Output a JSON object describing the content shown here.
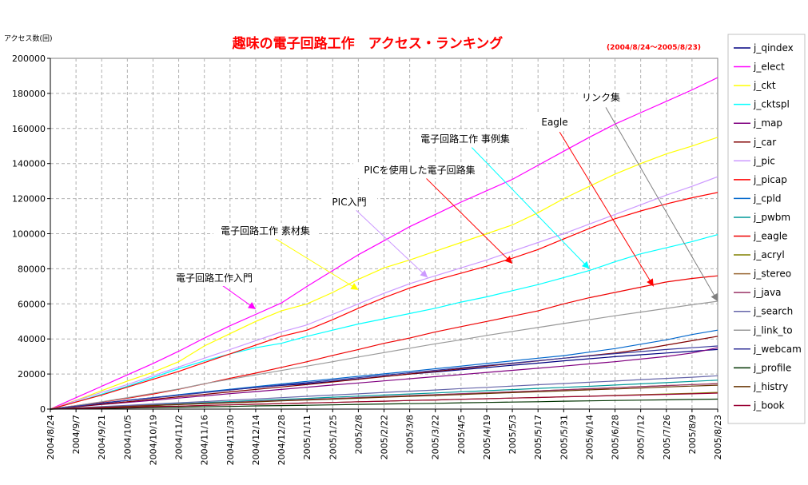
{
  "chart_data": {
    "type": "line",
    "title": "趣味の電子回路工作　アクセス・ランキング",
    "subtitle": "(2004/8/24～2005/8/23)",
    "ylabel": "アクセス数(回)",
    "xlabel": "",
    "ylim": [
      0,
      200000
    ],
    "y_ticks": [
      "0",
      "20000",
      "40000",
      "60000",
      "80000",
      "100000",
      "120000",
      "140000",
      "160000",
      "180000",
      "200000"
    ],
    "x_ticks": [
      "2004/8/24",
      "2004/9/7",
      "2004/9/21",
      "2004/10/5",
      "2004/10/19",
      "2004/11/2",
      "2004/11/16",
      "2004/11/30",
      "2004/12/14",
      "2004/12/28",
      "2005/1/11",
      "2005/1/25",
      "2005/2/8",
      "2005/2/22",
      "2005/3/8",
      "2005/3/22",
      "2005/4/5",
      "2005/4/19",
      "2005/5/3",
      "2005/5/17",
      "2005/5/31",
      "2005/6/14",
      "2005/6/28",
      "2005/7/12",
      "2005/7/26",
      "2005/8/9",
      "2005/8/23"
    ],
    "grid": true,
    "legend_position": "right",
    "series": [
      {
        "name": "j_qindex",
        "color": "#000080",
        "values": [
          0,
          1800,
          3500,
          5000,
          6500,
          8000,
          9500,
          11000,
          12300,
          13500,
          14500,
          15800,
          17200,
          18600,
          20000,
          21200,
          22400,
          23700,
          25000,
          26200,
          27500,
          28700,
          29900,
          31000,
          32000,
          33000,
          34000
        ]
      },
      {
        "name": "j_elect",
        "color": "#ff00ff",
        "values": [
          0,
          6500,
          13000,
          19500,
          26000,
          33000,
          40500,
          47500,
          54000,
          60500,
          70000,
          79000,
          88000,
          96000,
          104000,
          111000,
          118000,
          124500,
          131000,
          139000,
          147000,
          155000,
          162500,
          169000,
          175500,
          182000,
          189000
        ]
      },
      {
        "name": "j_ckt",
        "color": "#ffff00",
        "values": [
          0,
          5000,
          10500,
          16000,
          21000,
          27000,
          36000,
          43000,
          50000,
          56000,
          60000,
          66500,
          74000,
          80500,
          85000,
          90000,
          95000,
          100000,
          105000,
          112000,
          120000,
          127000,
          134000,
          140000,
          145500,
          150000,
          155000
        ]
      },
      {
        "name": "j_cktspl",
        "color": "#00ffff",
        "values": [
          0,
          4000,
          8500,
          13000,
          18000,
          23000,
          27500,
          31500,
          35000,
          37500,
          41500,
          45000,
          48500,
          51500,
          54500,
          57500,
          61000,
          64000,
          67500,
          71000,
          75000,
          79000,
          84000,
          88500,
          92000,
          95500,
          99500
        ]
      },
      {
        "name": "j_map",
        "color": "#800080",
        "values": [
          0,
          1300,
          2600,
          3800,
          5000,
          6300,
          7500,
          8800,
          10000,
          11200,
          12500,
          13700,
          14900,
          16100,
          17300,
          18500,
          19700,
          20900,
          22100,
          23300,
          24500,
          25800,
          27000,
          28500,
          30000,
          32000,
          35000
        ]
      },
      {
        "name": "j_car",
        "color": "#800000",
        "values": [
          0,
          1400,
          2800,
          4200,
          5600,
          7000,
          8400,
          9800,
          11200,
          12600,
          14000,
          15500,
          17000,
          18500,
          20000,
          21500,
          23000,
          24500,
          26000,
          27500,
          29000,
          30500,
          32000,
          34000,
          36500,
          39000,
          41500
        ]
      },
      {
        "name": "j_pic",
        "color": "#cc99ff",
        "values": [
          0,
          4800,
          9500,
          14000,
          19000,
          24000,
          29000,
          34000,
          39000,
          44000,
          48000,
          54000,
          60000,
          66000,
          71500,
          76000,
          80500,
          85000,
          90000,
          95000,
          100000,
          105500,
          111000,
          116500,
          122000,
          127000,
          132500
        ]
      },
      {
        "name": "j_picap",
        "color": "#ff0000",
        "values": [
          0,
          4000,
          8000,
          12500,
          17000,
          21500,
          26500,
          31500,
          36500,
          41500,
          45000,
          51000,
          57500,
          63500,
          69000,
          73500,
          77500,
          81500,
          86000,
          91000,
          97000,
          103000,
          108500,
          113000,
          117000,
          120500,
          123500
        ]
      },
      {
        "name": "j_cpld",
        "color": "#0066cc",
        "values": [
          0,
          1700,
          3300,
          5000,
          6500,
          8200,
          9800,
          11300,
          12800,
          14300,
          15800,
          17200,
          18700,
          20100,
          21500,
          23000,
          24500,
          26000,
          27500,
          29000,
          30500,
          32500,
          34500,
          37000,
          39500,
          42500,
          45000
        ]
      },
      {
        "name": "j_pwbm",
        "color": "#009999",
        "values": [
          0,
          600,
          1200,
          1800,
          2400,
          3000,
          3700,
          4300,
          4900,
          5500,
          6100,
          6800,
          7400,
          8000,
          8600,
          9200,
          9900,
          10500,
          11100,
          11800,
          12400,
          13000,
          13700,
          14400,
          15100,
          15800,
          16500
        ]
      },
      {
        "name": "j_eagle",
        "color": "#ee0000",
        "values": [
          0,
          2000,
          4000,
          6200,
          8600,
          11300,
          14400,
          17600,
          20500,
          23800,
          27000,
          30600,
          34000,
          37500,
          40500,
          44000,
          47000,
          50000,
          53000,
          56000,
          60000,
          63500,
          66500,
          69500,
          72500,
          74500,
          76000
        ]
      },
      {
        "name": "j_acryl",
        "color": "#808000",
        "values": [
          0,
          300,
          700,
          1000,
          1400,
          1700,
          2100,
          2400,
          2800,
          3100,
          3500,
          3800,
          4200,
          4500,
          4900,
          5200,
          5600,
          5900,
          6300,
          6600,
          7000,
          7400,
          7800,
          8200,
          8600,
          9000,
          9500
        ]
      },
      {
        "name": "j_stereo",
        "color": "#996633",
        "values": [
          0,
          500,
          1000,
          1600,
          2100,
          2700,
          3200,
          3800,
          4300,
          4900,
          5400,
          6000,
          6500,
          7100,
          7600,
          8200,
          8700,
          9300,
          9800,
          10400,
          11000,
          11600,
          12200,
          12800,
          13400,
          14000,
          14600
        ]
      },
      {
        "name": "j_java",
        "color": "#993366",
        "values": [
          0,
          500,
          1100,
          1600,
          2200,
          2700,
          3300,
          3800,
          4400,
          4900,
          5500,
          6000,
          6600,
          7100,
          7700,
          8200,
          8800,
          9300,
          9900,
          10400,
          11000,
          11600,
          12200,
          12800,
          13400,
          14000,
          14500
        ]
      },
      {
        "name": "j_search",
        "color": "#6666aa",
        "values": [
          0,
          700,
          1400,
          2100,
          2900,
          3600,
          4300,
          5100,
          5800,
          6500,
          7300,
          8000,
          8700,
          9500,
          10200,
          10900,
          11700,
          12400,
          13100,
          13900,
          14600,
          15300,
          16000,
          16800,
          17500,
          18200,
          19000
        ]
      },
      {
        "name": "j_link_to",
        "color": "#999999",
        "values": [
          0,
          2000,
          4200,
          6500,
          9000,
          11500,
          14500,
          17000,
          19500,
          22000,
          24500,
          27000,
          29700,
          32200,
          34700,
          37200,
          39500,
          42000,
          44300,
          46500,
          48800,
          51000,
          53200,
          55300,
          57400,
          59500,
          61500
        ]
      },
      {
        "name": "j_webcam",
        "color": "#333399",
        "values": [
          0,
          1700,
          3300,
          4900,
          6400,
          7900,
          9400,
          10900,
          12300,
          13700,
          15100,
          16500,
          17900,
          19300,
          20700,
          22100,
          23500,
          24900,
          26200,
          27600,
          29000,
          30300,
          31600,
          32800,
          34000,
          35000,
          36000
        ]
      },
      {
        "name": "j_profile",
        "color": "#003300",
        "values": [
          0,
          200,
          400,
          600,
          900,
          1100,
          1300,
          1500,
          1800,
          2000,
          2200,
          2400,
          2700,
          2900,
          3100,
          3300,
          3600,
          3800,
          4000,
          4200,
          4500,
          4700,
          4900,
          5100,
          5300,
          5500,
          5700
        ]
      },
      {
        "name": "j_histry",
        "color": "#663300",
        "values": [
          0,
          500,
          1000,
          1500,
          2000,
          2600,
          3100,
          3600,
          4100,
          4700,
          5200,
          5700,
          6200,
          6800,
          7300,
          7800,
          8300,
          8900,
          9400,
          9900,
          10400,
          11000,
          11500,
          12000,
          12600,
          13100,
          13600
        ]
      },
      {
        "name": "j_book",
        "color": "#990033",
        "values": [
          0,
          300,
          700,
          1000,
          1400,
          1700,
          2100,
          2400,
          2800,
          3100,
          3500,
          3800,
          4200,
          4500,
          4900,
          5200,
          5600,
          5900,
          6300,
          6600,
          7000,
          7300,
          7700,
          8000,
          8400,
          8700,
          9100
        ]
      }
    ],
    "annotations": [
      {
        "label": "電子回路工作入門",
        "color": "#ff00ff",
        "x_idx": 8,
        "y": 57000
      },
      {
        "label": "電子回路工作 素材集",
        "color": "#ffff00",
        "x_idx": 12,
        "y": 68000
      },
      {
        "label": "PIC入門",
        "color": "#cc99ff",
        "x_idx": 14.7,
        "y": 75000
      },
      {
        "label": "PICを使用した電子回路集",
        "color": "#ff0000",
        "x_idx": 18,
        "y": 83000
      },
      {
        "label": "電子回路工作 事例集",
        "color": "#00ffff",
        "x_idx": 21,
        "y": 80000
      },
      {
        "label": "Eagle",
        "color": "#ff0000",
        "x_idx": 23.5,
        "y": 70000
      },
      {
        "label": "リンク集",
        "color": "#808080",
        "x_idx": 26,
        "y": 61500
      }
    ]
  }
}
